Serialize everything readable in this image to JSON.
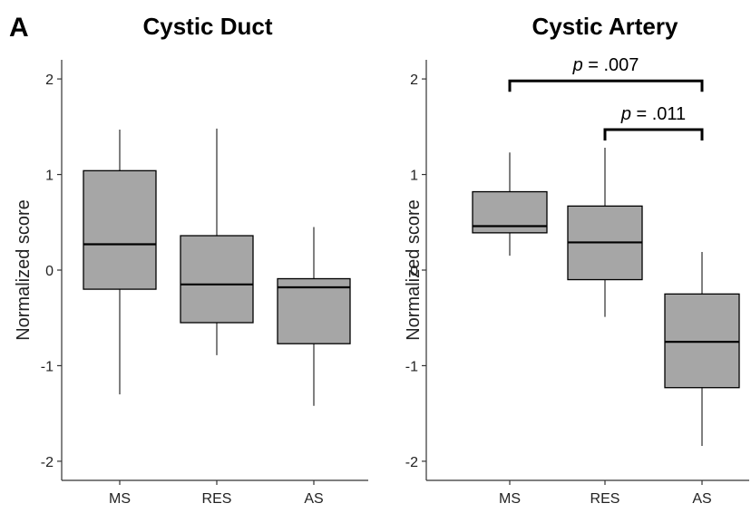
{
  "panel_label": "A",
  "chart_data": [
    {
      "type": "box",
      "title": "Cystic Duct",
      "xlabel": "",
      "ylabel": "Normalized score",
      "ylim": [
        -2.2,
        2.2
      ],
      "yticks": [
        2,
        1,
        0,
        -1,
        -2
      ],
      "ytick_labels": [
        "2",
        "1",
        "0",
        "-1",
        "-2"
      ],
      "categories": [
        "MS",
        "RES",
        "AS"
      ],
      "boxes": [
        {
          "category": "MS",
          "whisker_low": -1.3,
          "q1": -0.2,
          "median": 0.27,
          "q3": 1.04,
          "whisker_high": 1.47
        },
        {
          "category": "RES",
          "whisker_low": -0.89,
          "q1": -0.55,
          "median": -0.15,
          "q3": 0.36,
          "whisker_high": 1.48
        },
        {
          "category": "AS",
          "whisker_low": -1.42,
          "q1": -0.77,
          "median": -0.18,
          "q3": -0.09,
          "whisker_high": 0.45
        }
      ],
      "annotations": []
    },
    {
      "type": "box",
      "title": "Cystic Artery",
      "xlabel": "",
      "ylabel": "Normalized score",
      "ylim": [
        -2.2,
        2.2
      ],
      "yticks": [
        2,
        1,
        0,
        -1,
        -2
      ],
      "ytick_labels": [
        "2",
        "1",
        "0",
        "-1",
        "-2"
      ],
      "categories": [
        "MS",
        "RES",
        "AS"
      ],
      "boxes": [
        {
          "category": "MS",
          "whisker_low": 0.15,
          "q1": 0.39,
          "median": 0.46,
          "q3": 0.82,
          "whisker_high": 1.23
        },
        {
          "category": "RES",
          "whisker_low": -0.49,
          "q1": -0.1,
          "median": 0.29,
          "q3": 0.67,
          "whisker_high": 1.28
        },
        {
          "category": "AS",
          "whisker_low": -1.84,
          "q1": -1.23,
          "median": -0.75,
          "q3": -0.25,
          "whisker_high": 0.19
        }
      ],
      "annotations": [
        {
          "from": "MS",
          "to": "AS",
          "y": 1.98,
          "p_italic": "p",
          "p_rest": " = .007"
        },
        {
          "from": "RES",
          "to": "AS",
          "y": 1.47,
          "p_italic": "p",
          "p_rest": " = .011"
        }
      ]
    }
  ]
}
